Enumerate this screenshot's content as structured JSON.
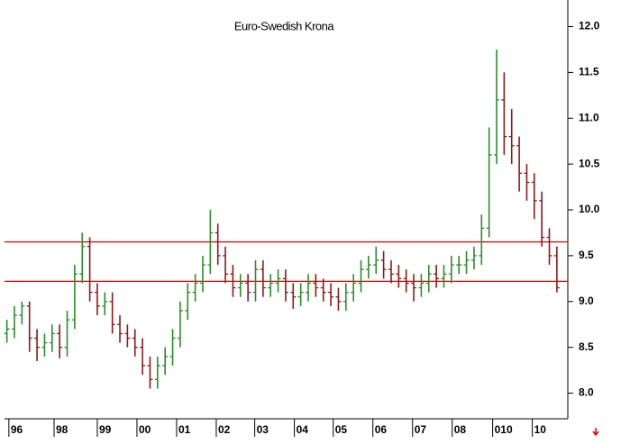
{
  "chart_data": {
    "type": "ohlc",
    "title": "Euro-Swedish Krona",
    "x": [
      1995.95,
      1996.14,
      1996.33,
      1996.52,
      1996.71,
      1996.9,
      1997.09,
      1997.28,
      1997.47,
      1997.66,
      1997.85,
      1998.04,
      1998.23,
      1998.42,
      1998.61,
      1998.8,
      1998.99,
      1999.18,
      1999.37,
      1999.56,
      1999.75,
      1999.94,
      2000.13,
      2000.32,
      2000.51,
      2000.7,
      2000.89,
      2001.08,
      2001.27,
      2001.46,
      2001.65,
      2001.84,
      2002.03,
      2002.22,
      2002.41,
      2002.6,
      2002.79,
      2002.98,
      2003.17,
      2003.36,
      2003.55,
      2003.74,
      2003.93,
      2004.12,
      2004.31,
      2004.5,
      2004.69,
      2004.88,
      2005.07,
      2005.26,
      2005.45,
      2005.64,
      2005.83,
      2006.02,
      2006.21,
      2006.4,
      2006.59,
      2006.78,
      2006.97,
      2007.16,
      2007.35,
      2007.54,
      2007.73,
      2007.92,
      2008.11,
      2008.3,
      2008.49,
      2008.68,
      2008.87,
      2009.06,
      2009.25,
      2009.44,
      2009.63,
      2009.82
    ],
    "open": [
      8.65,
      8.7,
      8.85,
      8.95,
      8.6,
      8.5,
      8.55,
      8.65,
      8.5,
      8.8,
      9.3,
      9.6,
      9.1,
      8.95,
      9.0,
      8.75,
      8.65,
      8.6,
      8.5,
      8.3,
      8.15,
      8.3,
      8.4,
      8.6,
      8.9,
      9.1,
      9.2,
      9.4,
      9.75,
      9.5,
      9.3,
      9.15,
      9.2,
      9.1,
      9.35,
      9.15,
      9.2,
      9.25,
      9.1,
      9.05,
      9.1,
      9.2,
      9.15,
      9.1,
      9.05,
      9.0,
      9.1,
      9.2,
      9.35,
      9.4,
      9.45,
      9.35,
      9.3,
      9.25,
      9.2,
      9.15,
      9.2,
      9.3,
      9.25,
      9.3,
      9.4,
      9.4,
      9.45,
      9.5,
      9.8,
      10.6,
      11.2,
      10.8,
      10.7,
      10.4,
      10.3,
      10.1,
      9.7,
      9.5
    ],
    "high": [
      8.8,
      8.95,
      9.0,
      9.0,
      8.7,
      8.65,
      8.75,
      8.75,
      8.9,
      9.4,
      9.75,
      9.7,
      9.2,
      9.1,
      9.1,
      8.85,
      8.75,
      8.7,
      8.6,
      8.4,
      8.4,
      8.5,
      8.7,
      9.0,
      9.2,
      9.3,
      9.5,
      10.0,
      9.85,
      9.6,
      9.4,
      9.3,
      9.3,
      9.45,
      9.45,
      9.3,
      9.35,
      9.35,
      9.2,
      9.2,
      9.3,
      9.3,
      9.25,
      9.2,
      9.15,
      9.2,
      9.3,
      9.45,
      9.5,
      9.6,
      9.55,
      9.45,
      9.4,
      9.35,
      9.3,
      9.3,
      9.4,
      9.4,
      9.4,
      9.5,
      9.5,
      9.55,
      9.6,
      9.95,
      10.9,
      11.75,
      11.5,
      11.1,
      10.8,
      10.5,
      10.4,
      10.2,
      9.8,
      9.6
    ],
    "low": [
      8.55,
      8.6,
      8.75,
      8.45,
      8.35,
      8.4,
      8.45,
      8.38,
      8.4,
      8.7,
      9.2,
      9.0,
      8.85,
      8.85,
      8.65,
      8.55,
      8.5,
      8.4,
      8.2,
      8.05,
      8.05,
      8.2,
      8.3,
      8.5,
      8.8,
      9.0,
      9.1,
      9.3,
      9.4,
      9.2,
      9.05,
      9.05,
      9.0,
      9.0,
      9.05,
      9.05,
      9.1,
      9.0,
      8.92,
      8.95,
      9.0,
      9.05,
      9.0,
      8.95,
      8.9,
      8.9,
      9.0,
      9.1,
      9.25,
      9.3,
      9.25,
      9.2,
      9.15,
      9.1,
      9.0,
      9.05,
      9.1,
      9.15,
      9.15,
      9.2,
      9.3,
      9.3,
      9.35,
      9.4,
      9.7,
      10.5,
      10.6,
      10.5,
      10.2,
      10.1,
      9.9,
      9.6,
      9.4,
      9.1
    ],
    "close": [
      8.7,
      8.85,
      8.95,
      8.6,
      8.5,
      8.55,
      8.65,
      8.5,
      8.8,
      9.3,
      9.6,
      9.1,
      8.95,
      9.0,
      8.75,
      8.65,
      8.6,
      8.5,
      8.3,
      8.15,
      8.3,
      8.4,
      8.6,
      8.9,
      9.1,
      9.2,
      9.4,
      9.75,
      9.5,
      9.3,
      9.15,
      9.2,
      9.1,
      9.35,
      9.15,
      9.2,
      9.25,
      9.1,
      9.05,
      9.1,
      9.2,
      9.15,
      9.1,
      9.05,
      9.0,
      9.1,
      9.2,
      9.35,
      9.4,
      9.45,
      9.35,
      9.3,
      9.25,
      9.2,
      9.15,
      9.2,
      9.3,
      9.25,
      9.3,
      9.4,
      9.4,
      9.45,
      9.5,
      9.8,
      10.6,
      11.2,
      10.8,
      10.7,
      10.4,
      10.3,
      10.1,
      9.7,
      9.5,
      9.15
    ],
    "up_color": "#2e8b2e",
    "down_color": "#8b1a1a",
    "hlines": [
      9.65,
      9.22
    ],
    "hline_color": "#e00000",
    "xlim": [
      1995.89,
      2010.05
    ],
    "xticks": [
      {
        "value": 1996,
        "label": "96"
      },
      {
        "value": 1997.14,
        "label": "98"
      },
      {
        "value": 1998.23,
        "label": "99"
      },
      {
        "value": 1999.23,
        "label": "00"
      },
      {
        "value": 2000.23,
        "label": "01"
      },
      {
        "value": 2001.23,
        "label": "02"
      },
      {
        "value": 2002.2,
        "label": "03"
      },
      {
        "value": 2003.2,
        "label": "04"
      },
      {
        "value": 2004.18,
        "label": "05"
      },
      {
        "value": 2005.18,
        "label": "06"
      },
      {
        "value": 2006.18,
        "label": "07"
      },
      {
        "value": 2007.18,
        "label": "08"
      },
      {
        "value": 2008.2,
        "label": "010"
      },
      {
        "value": 2009.2,
        "label": "10"
      }
    ],
    "ylim": [
      7.74,
      12.29
    ],
    "yticks": [
      {
        "value": 8,
        "label": "8.0"
      },
      8.5,
      {
        "value": 9,
        "label": "9.0"
      },
      9.5,
      {
        "value": 10,
        "label": "10.0"
      },
      10.5,
      {
        "value": 11,
        "label": "11.0"
      },
      11.5,
      {
        "value": 12,
        "label": "12.0"
      }
    ]
  }
}
